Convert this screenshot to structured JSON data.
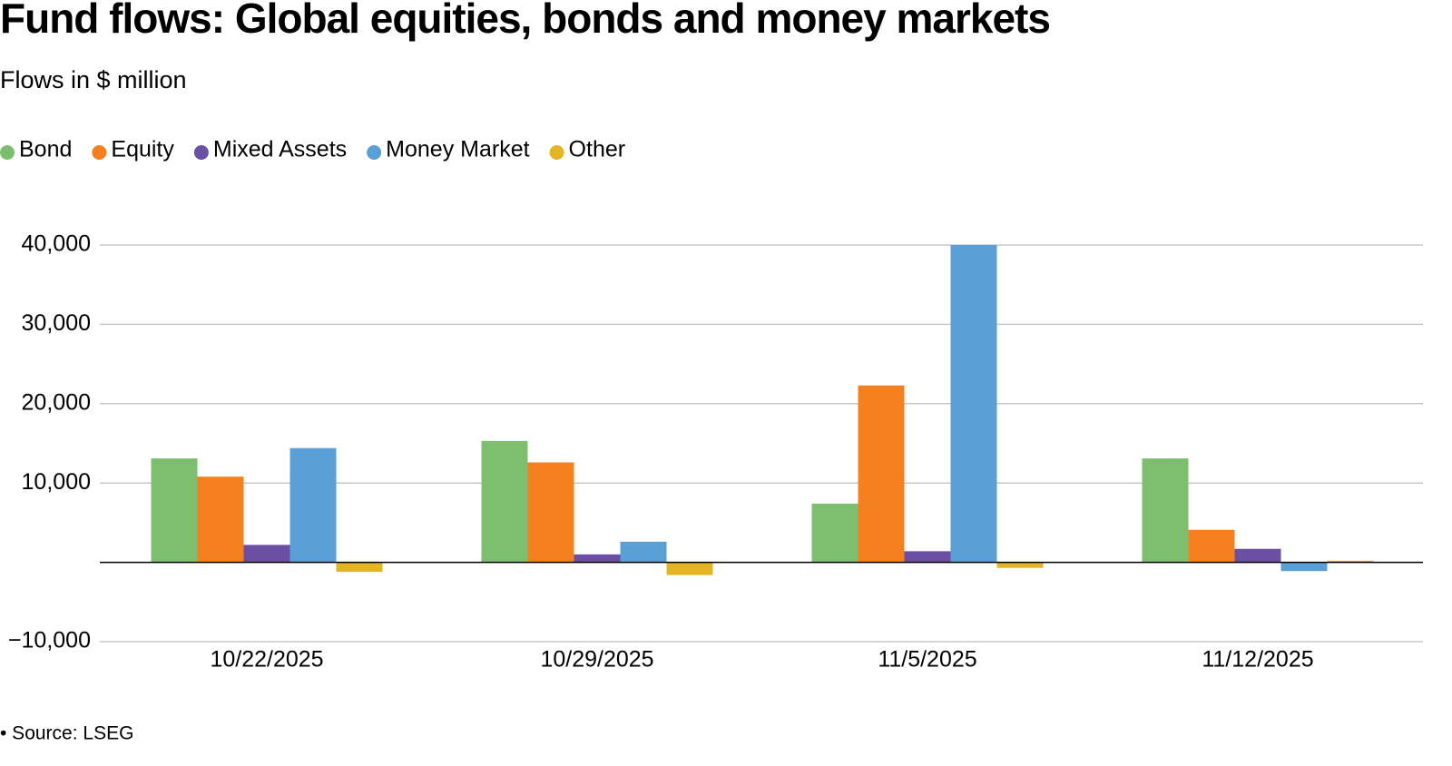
{
  "chart_data": {
    "type": "bar",
    "title": "Fund flows: Global equities, bonds and money markets",
    "subtitle": "Flows in $ million",
    "source": "• Source: LSEG",
    "categories": [
      "10/22/2025",
      "10/29/2025",
      "11/5/2025",
      "11/12/2025"
    ],
    "series": [
      {
        "name": "Bond",
        "color": "#7dbf6e",
        "values": [
          13100,
          15300,
          7400,
          13100
        ]
      },
      {
        "name": "Equity",
        "color": "#f5801f",
        "values": [
          10800,
          12600,
          22300,
          4100
        ]
      },
      {
        "name": "Mixed Assets",
        "color": "#6a4fa3",
        "values": [
          2200,
          1000,
          1400,
          1700
        ]
      },
      {
        "name": "Money Market",
        "color": "#5a9fd6",
        "values": [
          14400,
          2600,
          40000,
          -1100
        ]
      },
      {
        "name": "Other",
        "color": "#e3b424",
        "values": [
          -1200,
          -1600,
          -700,
          200
        ]
      }
    ],
    "ylim": [
      -10000,
      40000
    ],
    "yticks": [
      {
        "value": -10000,
        "label": "−10,000"
      },
      {
        "value": 10000,
        "label": "10,000"
      },
      {
        "value": 20000,
        "label": "20,000"
      },
      {
        "value": 30000,
        "label": "30,000"
      },
      {
        "value": 40000,
        "label": "40,000"
      }
    ],
    "grid": true
  }
}
